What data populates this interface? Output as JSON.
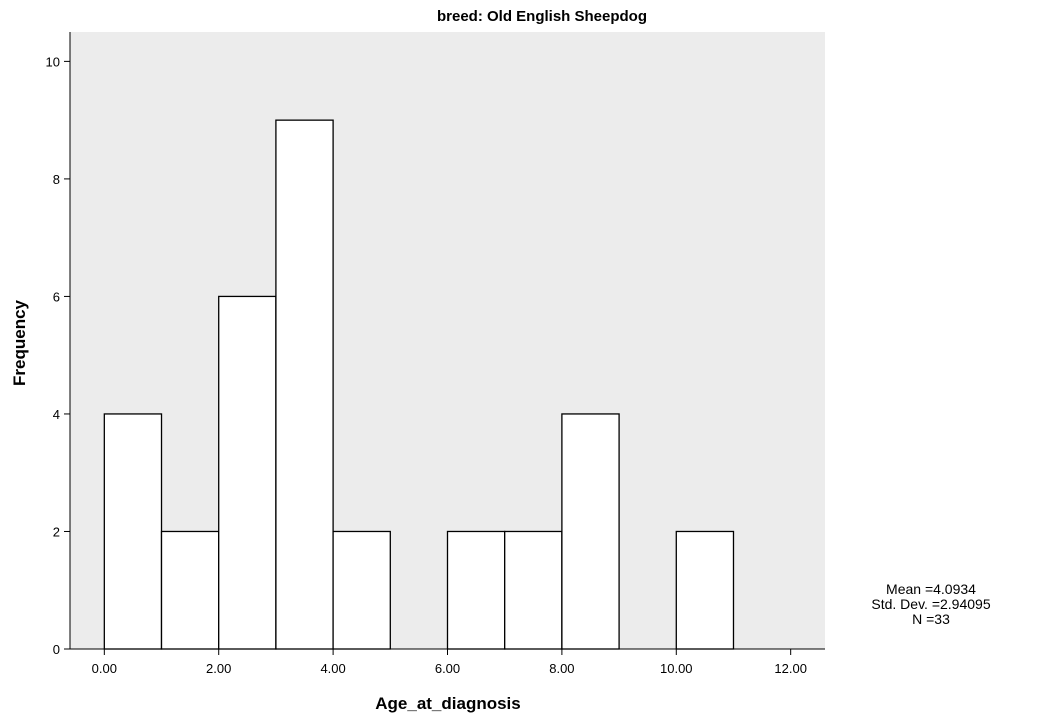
{
  "chart_data": {
    "type": "bar",
    "title": "breed: Old English Sheepdog",
    "xlabel": "Age_at_diagnosis",
    "ylabel": "Frequency",
    "xlim": [
      -0.6,
      12.6
    ],
    "ylim": [
      0,
      10.5
    ],
    "x_ticks": [
      "0.00",
      "2.00",
      "4.00",
      "6.00",
      "8.00",
      "10.00",
      "12.00"
    ],
    "x_tick_values": [
      0,
      2,
      4,
      6,
      8,
      10,
      12
    ],
    "y_ticks": [
      "0",
      "2",
      "4",
      "6",
      "8",
      "10"
    ],
    "y_tick_values": [
      0,
      2,
      4,
      6,
      8,
      10
    ],
    "bins": [
      {
        "start": 0,
        "end": 1,
        "count": 4
      },
      {
        "start": 1,
        "end": 2,
        "count": 2
      },
      {
        "start": 2,
        "end": 3,
        "count": 6
      },
      {
        "start": 3,
        "end": 4,
        "count": 9
      },
      {
        "start": 4,
        "end": 5,
        "count": 2
      },
      {
        "start": 5,
        "end": 6,
        "count": 0
      },
      {
        "start": 6,
        "end": 7,
        "count": 2
      },
      {
        "start": 7,
        "end": 8,
        "count": 2
      },
      {
        "start": 8,
        "end": 9,
        "count": 4
      },
      {
        "start": 9,
        "end": 10,
        "count": 0
      },
      {
        "start": 10,
        "end": 11,
        "count": 2
      },
      {
        "start": 11,
        "end": 12,
        "count": 0
      }
    ],
    "grid": false,
    "colors": {
      "plot_bg": "#ececec",
      "bar_fill": "#ffffff",
      "bar_stroke": "#000000"
    }
  },
  "stats": {
    "mean": "Mean =4.0934",
    "std_dev": "Std. Dev. =2.94095",
    "n": "N =33"
  }
}
